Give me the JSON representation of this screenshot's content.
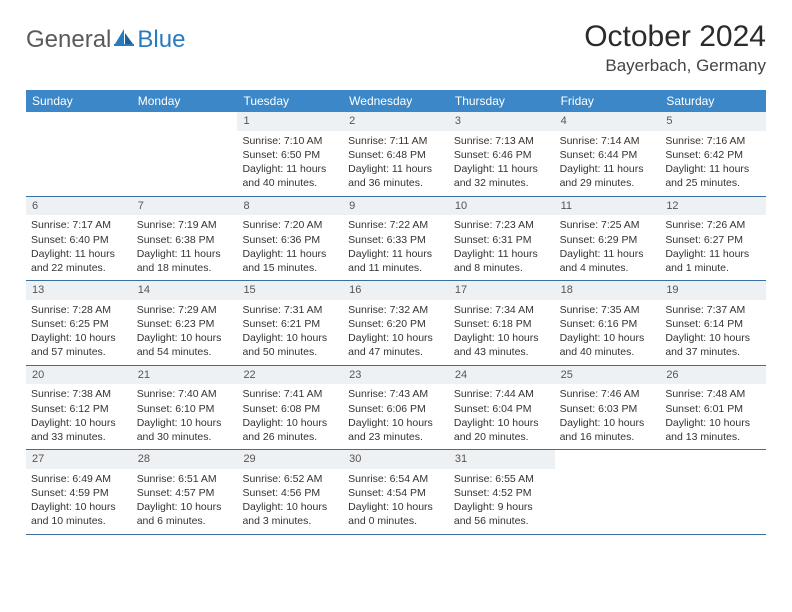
{
  "brand": {
    "part1": "General",
    "part2": "Blue"
  },
  "title": "October 2024",
  "location": "Bayerbach, Germany",
  "colors": {
    "header_bg": "#3b87c8",
    "header_text": "#ffffff",
    "daynum_bg": "#eef1f4",
    "row_border": "#3b6fa0",
    "logo_gray": "#5a5a5a",
    "logo_blue": "#2a7ac0"
  },
  "day_names": [
    "Sunday",
    "Monday",
    "Tuesday",
    "Wednesday",
    "Thursday",
    "Friday",
    "Saturday"
  ],
  "weeks": [
    [
      null,
      null,
      {
        "n": "1",
        "sr": "Sunrise: 7:10 AM",
        "ss": "Sunset: 6:50 PM",
        "dl": "Daylight: 11 hours and 40 minutes."
      },
      {
        "n": "2",
        "sr": "Sunrise: 7:11 AM",
        "ss": "Sunset: 6:48 PM",
        "dl": "Daylight: 11 hours and 36 minutes."
      },
      {
        "n": "3",
        "sr": "Sunrise: 7:13 AM",
        "ss": "Sunset: 6:46 PM",
        "dl": "Daylight: 11 hours and 32 minutes."
      },
      {
        "n": "4",
        "sr": "Sunrise: 7:14 AM",
        "ss": "Sunset: 6:44 PM",
        "dl": "Daylight: 11 hours and 29 minutes."
      },
      {
        "n": "5",
        "sr": "Sunrise: 7:16 AM",
        "ss": "Sunset: 6:42 PM",
        "dl": "Daylight: 11 hours and 25 minutes."
      }
    ],
    [
      {
        "n": "6",
        "sr": "Sunrise: 7:17 AM",
        "ss": "Sunset: 6:40 PM",
        "dl": "Daylight: 11 hours and 22 minutes."
      },
      {
        "n": "7",
        "sr": "Sunrise: 7:19 AM",
        "ss": "Sunset: 6:38 PM",
        "dl": "Daylight: 11 hours and 18 minutes."
      },
      {
        "n": "8",
        "sr": "Sunrise: 7:20 AM",
        "ss": "Sunset: 6:36 PM",
        "dl": "Daylight: 11 hours and 15 minutes."
      },
      {
        "n": "9",
        "sr": "Sunrise: 7:22 AM",
        "ss": "Sunset: 6:33 PM",
        "dl": "Daylight: 11 hours and 11 minutes."
      },
      {
        "n": "10",
        "sr": "Sunrise: 7:23 AM",
        "ss": "Sunset: 6:31 PM",
        "dl": "Daylight: 11 hours and 8 minutes."
      },
      {
        "n": "11",
        "sr": "Sunrise: 7:25 AM",
        "ss": "Sunset: 6:29 PM",
        "dl": "Daylight: 11 hours and 4 minutes."
      },
      {
        "n": "12",
        "sr": "Sunrise: 7:26 AM",
        "ss": "Sunset: 6:27 PM",
        "dl": "Daylight: 11 hours and 1 minute."
      }
    ],
    [
      {
        "n": "13",
        "sr": "Sunrise: 7:28 AM",
        "ss": "Sunset: 6:25 PM",
        "dl": "Daylight: 10 hours and 57 minutes."
      },
      {
        "n": "14",
        "sr": "Sunrise: 7:29 AM",
        "ss": "Sunset: 6:23 PM",
        "dl": "Daylight: 10 hours and 54 minutes."
      },
      {
        "n": "15",
        "sr": "Sunrise: 7:31 AM",
        "ss": "Sunset: 6:21 PM",
        "dl": "Daylight: 10 hours and 50 minutes."
      },
      {
        "n": "16",
        "sr": "Sunrise: 7:32 AM",
        "ss": "Sunset: 6:20 PM",
        "dl": "Daylight: 10 hours and 47 minutes."
      },
      {
        "n": "17",
        "sr": "Sunrise: 7:34 AM",
        "ss": "Sunset: 6:18 PM",
        "dl": "Daylight: 10 hours and 43 minutes."
      },
      {
        "n": "18",
        "sr": "Sunrise: 7:35 AM",
        "ss": "Sunset: 6:16 PM",
        "dl": "Daylight: 10 hours and 40 minutes."
      },
      {
        "n": "19",
        "sr": "Sunrise: 7:37 AM",
        "ss": "Sunset: 6:14 PM",
        "dl": "Daylight: 10 hours and 37 minutes."
      }
    ],
    [
      {
        "n": "20",
        "sr": "Sunrise: 7:38 AM",
        "ss": "Sunset: 6:12 PM",
        "dl": "Daylight: 10 hours and 33 minutes."
      },
      {
        "n": "21",
        "sr": "Sunrise: 7:40 AM",
        "ss": "Sunset: 6:10 PM",
        "dl": "Daylight: 10 hours and 30 minutes."
      },
      {
        "n": "22",
        "sr": "Sunrise: 7:41 AM",
        "ss": "Sunset: 6:08 PM",
        "dl": "Daylight: 10 hours and 26 minutes."
      },
      {
        "n": "23",
        "sr": "Sunrise: 7:43 AM",
        "ss": "Sunset: 6:06 PM",
        "dl": "Daylight: 10 hours and 23 minutes."
      },
      {
        "n": "24",
        "sr": "Sunrise: 7:44 AM",
        "ss": "Sunset: 6:04 PM",
        "dl": "Daylight: 10 hours and 20 minutes."
      },
      {
        "n": "25",
        "sr": "Sunrise: 7:46 AM",
        "ss": "Sunset: 6:03 PM",
        "dl": "Daylight: 10 hours and 16 minutes."
      },
      {
        "n": "26",
        "sr": "Sunrise: 7:48 AM",
        "ss": "Sunset: 6:01 PM",
        "dl": "Daylight: 10 hours and 13 minutes."
      }
    ],
    [
      {
        "n": "27",
        "sr": "Sunrise: 6:49 AM",
        "ss": "Sunset: 4:59 PM",
        "dl": "Daylight: 10 hours and 10 minutes."
      },
      {
        "n": "28",
        "sr": "Sunrise: 6:51 AM",
        "ss": "Sunset: 4:57 PM",
        "dl": "Daylight: 10 hours and 6 minutes."
      },
      {
        "n": "29",
        "sr": "Sunrise: 6:52 AM",
        "ss": "Sunset: 4:56 PM",
        "dl": "Daylight: 10 hours and 3 minutes."
      },
      {
        "n": "30",
        "sr": "Sunrise: 6:54 AM",
        "ss": "Sunset: 4:54 PM",
        "dl": "Daylight: 10 hours and 0 minutes."
      },
      {
        "n": "31",
        "sr": "Sunrise: 6:55 AM",
        "ss": "Sunset: 4:52 PM",
        "dl": "Daylight: 9 hours and 56 minutes."
      },
      null,
      null
    ]
  ]
}
